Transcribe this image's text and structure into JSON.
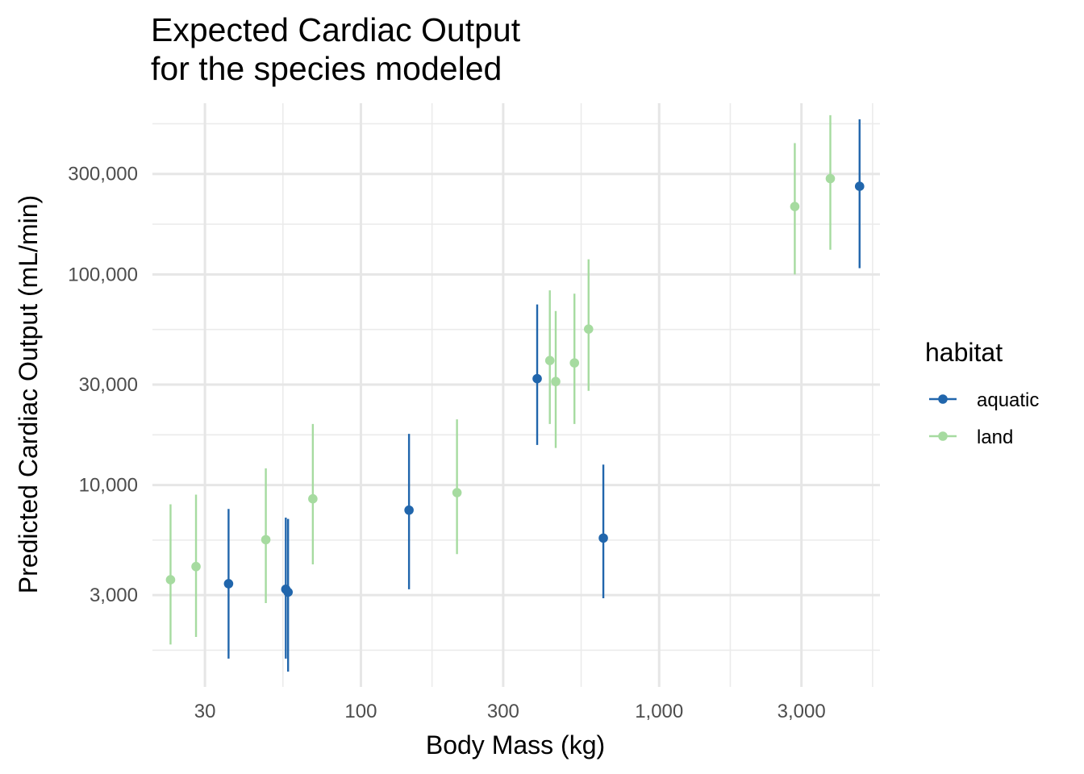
{
  "chart_data": {
    "type": "scatter",
    "subtype": "pointrange",
    "title_lines": [
      "Expected Cardiac Output",
      "for the species modeled"
    ],
    "xlabel": "Body Mass (kg)",
    "ylabel": "Predicted Cardiac Output (mL/min)",
    "x_scale": "log10",
    "y_scale": "log10",
    "xlim": [
      20,
      5500
    ],
    "ylim": [
      1100,
      650000
    ],
    "x_ticks": [
      {
        "value": 30,
        "label": "30"
      },
      {
        "value": 100,
        "label": "100"
      },
      {
        "value": 300,
        "label": "300"
      },
      {
        "value": 1000,
        "label": "1,000"
      },
      {
        "value": 3000,
        "label": "3,000"
      }
    ],
    "y_ticks": [
      {
        "value": 3000,
        "label": "3,000"
      },
      {
        "value": 10000,
        "label": "10,000"
      },
      {
        "value": 30000,
        "label": "30,000"
      },
      {
        "value": 100000,
        "label": "100,000"
      },
      {
        "value": 300000,
        "label": "300,000"
      }
    ],
    "grid": true,
    "legend": {
      "title": "habitat",
      "position": "right"
    },
    "series": [
      {
        "name": "aquatic",
        "color": "#2166ac",
        "points": [
          {
            "x": 36,
            "y": 3400,
            "ymin": 1500,
            "ymax": 7700
          },
          {
            "x": 56,
            "y": 3200,
            "ymin": 1500,
            "ymax": 7000
          },
          {
            "x": 57,
            "y": 3100,
            "ymin": 1300,
            "ymax": 6900
          },
          {
            "x": 145,
            "y": 7600,
            "ymin": 3200,
            "ymax": 17500
          },
          {
            "x": 390,
            "y": 32000,
            "ymin": 15500,
            "ymax": 72000
          },
          {
            "x": 650,
            "y": 5600,
            "ymin": 2900,
            "ymax": 12500
          },
          {
            "x": 4700,
            "y": 262000,
            "ymin": 107000,
            "ymax": 545000
          }
        ]
      },
      {
        "name": "land",
        "color": "#a6dba0",
        "points": [
          {
            "x": 23,
            "y": 3550,
            "ymin": 1750,
            "ymax": 8100
          },
          {
            "x": 28,
            "y": 4100,
            "ymin": 1900,
            "ymax": 9000
          },
          {
            "x": 48,
            "y": 5500,
            "ymin": 2750,
            "ymax": 12000
          },
          {
            "x": 69,
            "y": 8600,
            "ymin": 4200,
            "ymax": 19500
          },
          {
            "x": 210,
            "y": 9200,
            "ymin": 4700,
            "ymax": 20500
          },
          {
            "x": 430,
            "y": 39000,
            "ymin": 19500,
            "ymax": 84000
          },
          {
            "x": 450,
            "y": 31000,
            "ymin": 15000,
            "ymax": 67000
          },
          {
            "x": 520,
            "y": 38000,
            "ymin": 19500,
            "ymax": 81000
          },
          {
            "x": 580,
            "y": 55000,
            "ymin": 28000,
            "ymax": 118000
          },
          {
            "x": 2850,
            "y": 210000,
            "ymin": 100000,
            "ymax": 420000
          },
          {
            "x": 3750,
            "y": 285000,
            "ymin": 131000,
            "ymax": 570000
          }
        ]
      }
    ]
  }
}
